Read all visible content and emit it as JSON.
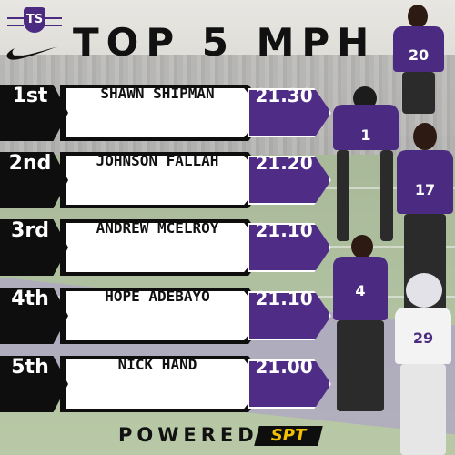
{
  "title": "TOP 5 MPH",
  "logo": {
    "text": "TS",
    "brand_color": "#4b2a82"
  },
  "sponsor_icon": "swoosh-icon",
  "leaderboard": [
    {
      "rank": "1st",
      "name": "SHAWN SHIPMAN",
      "speed": "21.30"
    },
    {
      "rank": "2nd",
      "name": "JOHNSON FALLAH",
      "speed": "21.20"
    },
    {
      "rank": "3rd",
      "name": "ANDREW MCELROY",
      "speed": "21.10"
    },
    {
      "rank": "4th",
      "name": "HOPE ADEBAYO",
      "speed": "21.10"
    },
    {
      "rank": "5th",
      "name": "NICK HAND",
      "speed": "21.00"
    }
  ],
  "players": [
    {
      "number": "20"
    },
    {
      "number": "1"
    },
    {
      "number": "17"
    },
    {
      "number": "4"
    },
    {
      "number": "29"
    }
  ],
  "footer": {
    "label": "POWERED BY",
    "logo_text": "SPT",
    "logo_color": "#f2c200"
  },
  "colors": {
    "purple": "#4f2d87",
    "black": "#0e0e0e",
    "white": "#ffffff"
  }
}
